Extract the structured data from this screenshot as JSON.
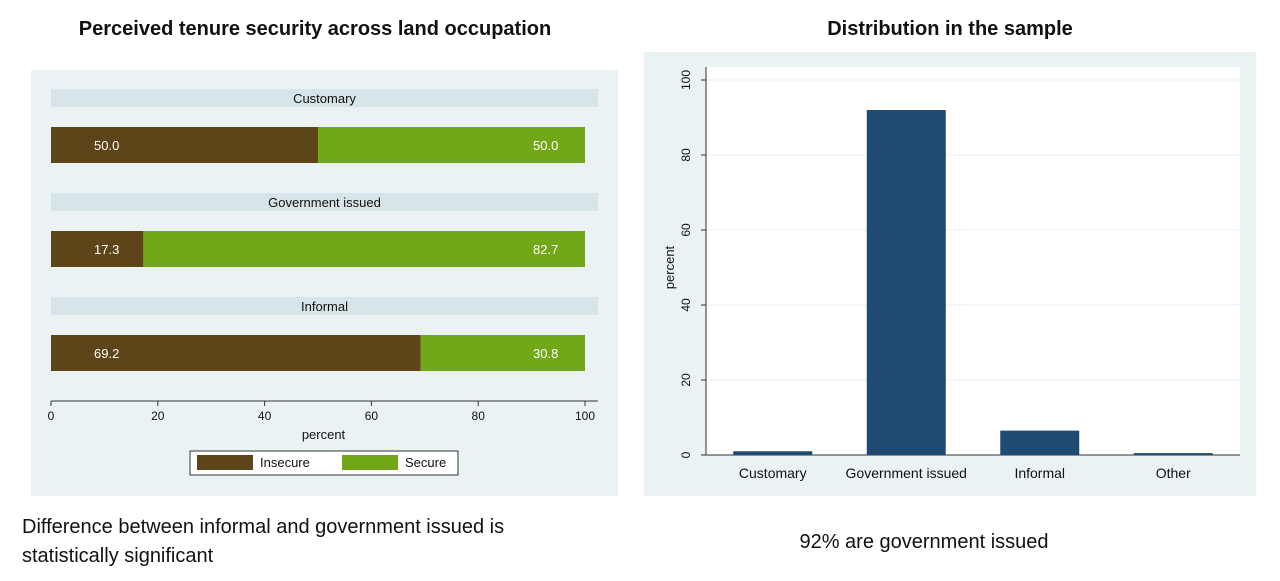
{
  "left_title": "Perceived tenure security across land occupation",
  "right_title": "Distribution in the sample",
  "caption_left": "Difference between informal and government issued is statistically significant",
  "caption_right": "92% are government issued",
  "colors": {
    "insecure": "#5e4519",
    "secure": "#72a817",
    "bar": "#1f4a72",
    "panel": "#eaf2f3",
    "strip": "#d7e4e8"
  },
  "chart_data": [
    {
      "type": "bar",
      "orientation": "horizontal",
      "stacked": true,
      "title": "Perceived tenure security across land occupation",
      "categories": [
        "Customary",
        "Government issued",
        "Informal"
      ],
      "series": [
        {
          "name": "Insecure",
          "values": [
            50.0,
            17.3,
            69.2
          ],
          "labels": [
            "50.0",
            "17.3",
            "69.2"
          ]
        },
        {
          "name": "Secure",
          "values": [
            50.0,
            82.7,
            30.8
          ],
          "labels": [
            "50.0",
            "82.7",
            "30.8"
          ]
        }
      ],
      "xlabel": "percent",
      "xlim": [
        0,
        100
      ],
      "xticks": [
        "0",
        "20",
        "40",
        "60",
        "80",
        "100"
      ],
      "legend_position": "bottom"
    },
    {
      "type": "bar",
      "title": "Distribution in the sample",
      "categories": [
        "Customary",
        "Government issued",
        "Informal",
        "Other"
      ],
      "values": [
        1,
        92,
        6.5,
        0.5
      ],
      "ylabel": "percent",
      "ylim": [
        0,
        100
      ],
      "yticks": [
        "0",
        "20",
        "40",
        "60",
        "80",
        "100"
      ],
      "grid": true
    }
  ]
}
